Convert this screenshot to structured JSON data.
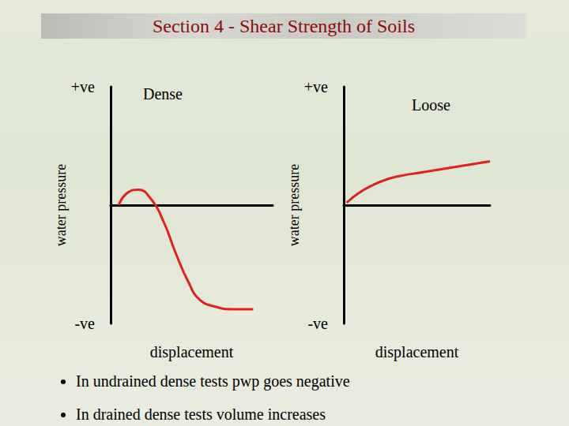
{
  "title": "Section 4 - Shear Strength of Soils",
  "bullets": [
    "In undrained dense tests pwp goes negative",
    "In drained dense tests volume increases"
  ],
  "chart_data": [
    {
      "type": "line",
      "title": "Dense",
      "xlabel": "displacement",
      "ylabel": "water pressure",
      "x": [
        0.5,
        1,
        1.7,
        2.5,
        3.3,
        4,
        4.8,
        5.5,
        6.5,
        7.5,
        8.8
      ],
      "values": [
        0,
        0.1,
        0.13,
        0.05,
        -0.15,
        -0.4,
        -0.65,
        -0.8,
        -0.86,
        -0.88,
        -0.88
      ],
      "color": "#e3211c",
      "xlim": [
        0,
        10
      ],
      "ylim": [
        -1,
        1
      ],
      "yticks": [
        {
          "value": -1,
          "label": "-ve"
        },
        {
          "value": 1,
          "label": "+ve"
        }
      ],
      "tick_labels": "y",
      "grid": false,
      "line_style": "solid"
    },
    {
      "type": "line",
      "title": "Loose",
      "xlabel": "displacement",
      "ylabel": "water pressure",
      "x": [
        0.2,
        1,
        2,
        3,
        4,
        5,
        6,
        7,
        8,
        9,
        10
      ],
      "values": [
        0.02,
        0.1,
        0.17,
        0.22,
        0.25,
        0.27,
        0.29,
        0.31,
        0.33,
        0.35,
        0.37
      ],
      "color": "#e3211c",
      "xlim": [
        0,
        10
      ],
      "ylim": [
        -1,
        1
      ],
      "yticks": [
        {
          "value": -1,
          "label": "-ve"
        },
        {
          "value": 1,
          "label": "+ve"
        }
      ],
      "tick_labels": "y",
      "grid": false,
      "line_style": "solid"
    }
  ]
}
